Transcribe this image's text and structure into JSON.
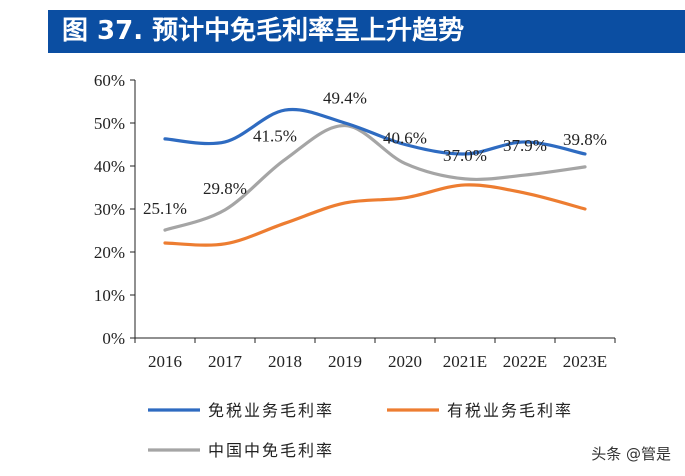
{
  "title": "图 37. 预计中免毛利率呈上升趋势",
  "watermark": "头条 @管是",
  "chart_data": {
    "type": "line",
    "categories": [
      "2016",
      "2017",
      "2018",
      "2019",
      "2020",
      "2021E",
      "2022E",
      "2023E"
    ],
    "ylim": [
      0,
      60
    ],
    "yticks": [
      "0%",
      "10%",
      "20%",
      "30%",
      "40%",
      "50%",
      "60%"
    ],
    "grid": false,
    "legend": "bottom",
    "series": [
      {
        "name": "免税业务毛利率",
        "color": "#2e6bc1",
        "values": [
          46.3,
          45.6,
          53.0,
          50.0,
          45.0,
          42.8,
          45.6,
          42.8
        ]
      },
      {
        "name": "有税业务毛利率",
        "color": "#ed7d31",
        "values": [
          22.1,
          21.9,
          26.7,
          31.4,
          32.6,
          35.6,
          33.7,
          30.0
        ]
      },
      {
        "name": "中国中免毛利率",
        "color": "#a5a5a5",
        "values": [
          25.1,
          29.8,
          41.5,
          49.4,
          40.6,
          37.0,
          37.9,
          39.8
        ],
        "data_labels": [
          "25.1%",
          "29.8%",
          "41.5%",
          "49.4%",
          "40.6%",
          "37.0%",
          "37.9%",
          "39.8%"
        ]
      }
    ]
  }
}
